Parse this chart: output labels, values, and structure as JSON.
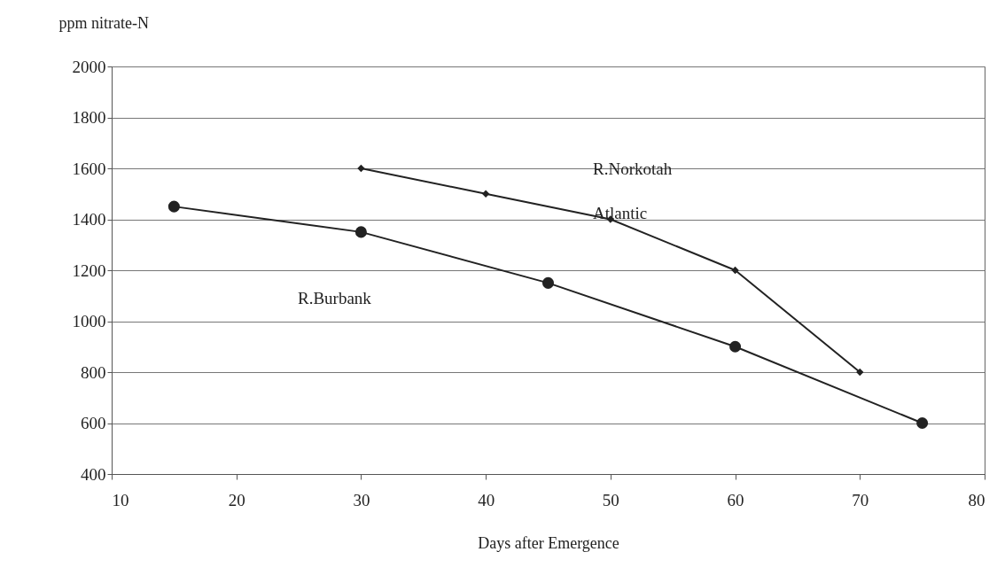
{
  "chart_data": {
    "type": "line",
    "xlabel": "Days after Emergence",
    "ylabel": "ppm nitrate-N",
    "xlim": [
      10,
      80
    ],
    "xticks": [
      10,
      20,
      30,
      40,
      50,
      60,
      70,
      80
    ],
    "ylim": [
      400,
      2000
    ],
    "yticks": [
      400,
      600,
      800,
      1000,
      1200,
      1400,
      1600,
      1800,
      2000
    ],
    "grid": "y",
    "series": [
      {
        "color": "#222222",
        "marker": "diamond",
        "x": [
          30,
          40,
          50,
          60,
          70
        ],
        "values": [
          1600,
          1500,
          1400,
          1200,
          800
        ]
      },
      {
        "color": "#222222",
        "marker": "circle",
        "x": [
          15,
          30,
          45,
          60,
          75
        ],
        "values": [
          1450,
          1350,
          1150,
          900,
          600
        ]
      }
    ],
    "annotations": [
      "R.Norkotah",
      "Atlantic",
      "R.Burbank"
    ]
  }
}
